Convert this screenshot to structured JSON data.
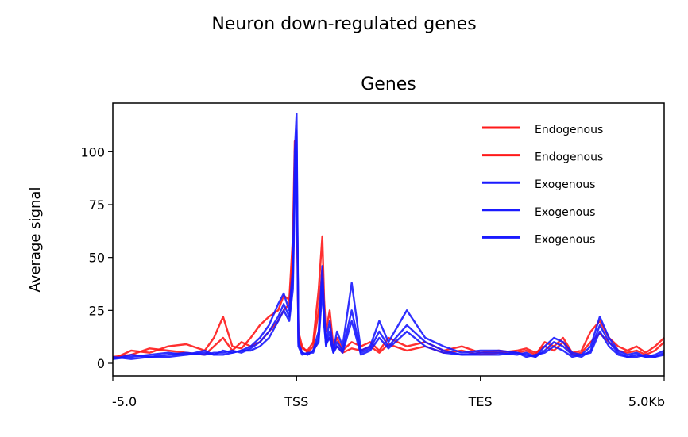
{
  "chart_data": {
    "type": "line",
    "suptitle": "Neuron down-regulated genes",
    "title": "Genes",
    "xlabel": "",
    "ylabel": "Average signal",
    "x_tick_labels": [
      "-5.0",
      "TSS",
      "TES",
      "5.0Kb"
    ],
    "x_tick_positions": [
      0,
      1,
      2,
      3
    ],
    "xlim": [
      0,
      3
    ],
    "y_ticks": [
      0,
      25,
      50,
      75,
      100
    ],
    "ylim": [
      -6,
      123
    ],
    "grid": false,
    "legend_position": "top-right",
    "series": [
      {
        "name": "Endogenous",
        "color": "#ff1a1a",
        "x": [
          0,
          0.1,
          0.2,
          0.3,
          0.4,
          0.5,
          0.55,
          0.6,
          0.65,
          0.7,
          0.75,
          0.8,
          0.85,
          0.9,
          0.93,
          0.96,
          0.98,
          0.99,
          1.0,
          1.01,
          1.03,
          1.06,
          1.09,
          1.12,
          1.14,
          1.15,
          1.16,
          1.18,
          1.2,
          1.22,
          1.25,
          1.3,
          1.35,
          1.4,
          1.45,
          1.5,
          1.6,
          1.7,
          1.8,
          1.9,
          2.0,
          2.1,
          2.2,
          2.25,
          2.3,
          2.35,
          2.4,
          2.45,
          2.5,
          2.55,
          2.6,
          2.65,
          2.7,
          2.75,
          2.8,
          2.85,
          2.9,
          2.95,
          3.0
        ],
        "values": [
          2,
          6,
          5,
          8,
          9,
          6,
          12,
          22,
          8,
          7,
          12,
          18,
          22,
          25,
          32,
          30,
          60,
          105,
          80,
          12,
          7,
          6,
          10,
          35,
          60,
          30,
          15,
          25,
          8,
          12,
          6,
          10,
          8,
          10,
          6,
          12,
          8,
          10,
          6,
          8,
          5,
          6,
          5,
          6,
          4,
          10,
          8,
          12,
          5,
          6,
          15,
          20,
          12,
          8,
          6,
          8,
          5,
          8,
          12
        ]
      },
      {
        "name": "Endogenous",
        "color": "#ff1a1a",
        "x": [
          0,
          0.1,
          0.2,
          0.3,
          0.4,
          0.5,
          0.55,
          0.6,
          0.65,
          0.7,
          0.75,
          0.8,
          0.85,
          0.9,
          0.93,
          0.96,
          0.98,
          0.99,
          1.0,
          1.01,
          1.03,
          1.06,
          1.09,
          1.12,
          1.14,
          1.15,
          1.16,
          1.18,
          1.2,
          1.22,
          1.25,
          1.3,
          1.35,
          1.4,
          1.45,
          1.5,
          1.6,
          1.7,
          1.8,
          1.9,
          2.0,
          2.1,
          2.2,
          2.25,
          2.3,
          2.35,
          2.4,
          2.45,
          2.5,
          2.55,
          2.6,
          2.65,
          2.7,
          2.75,
          2.8,
          2.85,
          2.9,
          2.95,
          3.0
        ],
        "values": [
          3,
          4,
          7,
          6,
          5,
          4,
          8,
          12,
          6,
          10,
          8,
          10,
          15,
          20,
          25,
          28,
          50,
          90,
          95,
          15,
          8,
          5,
          8,
          25,
          45,
          20,
          10,
          12,
          6,
          8,
          5,
          7,
          6,
          8,
          5,
          9,
          6,
          8,
          5,
          6,
          4,
          5,
          6,
          7,
          5,
          8,
          6,
          10,
          4,
          5,
          10,
          14,
          10,
          6,
          5,
          6,
          4,
          6,
          10
        ]
      },
      {
        "name": "Exogenous",
        "color": "#1a1aff",
        "x": [
          0,
          0.1,
          0.2,
          0.3,
          0.4,
          0.5,
          0.55,
          0.6,
          0.65,
          0.7,
          0.75,
          0.8,
          0.85,
          0.9,
          0.93,
          0.96,
          0.98,
          0.99,
          1.0,
          1.01,
          1.03,
          1.06,
          1.09,
          1.12,
          1.14,
          1.15,
          1.16,
          1.18,
          1.2,
          1.22,
          1.25,
          1.3,
          1.35,
          1.4,
          1.45,
          1.5,
          1.6,
          1.7,
          1.8,
          1.9,
          2.0,
          2.1,
          2.2,
          2.25,
          2.3,
          2.35,
          2.4,
          2.45,
          2.5,
          2.55,
          2.6,
          2.65,
          2.7,
          2.75,
          2.8,
          2.85,
          2.9,
          2.95,
          3.0
        ],
        "values": [
          2,
          3,
          4,
          5,
          4,
          5,
          4,
          6,
          5,
          6,
          8,
          12,
          18,
          28,
          33,
          25,
          45,
          100,
          118,
          10,
          5,
          4,
          6,
          15,
          46,
          25,
          10,
          20,
          6,
          15,
          8,
          38,
          6,
          8,
          20,
          10,
          25,
          12,
          8,
          5,
          6,
          6,
          5,
          4,
          3,
          8,
          12,
          10,
          5,
          4,
          8,
          22,
          12,
          6,
          4,
          5,
          3,
          4,
          6
        ]
      },
      {
        "name": "Exogenous",
        "color": "#1a1aff",
        "x": [
          0,
          0.1,
          0.2,
          0.3,
          0.4,
          0.5,
          0.55,
          0.6,
          0.65,
          0.7,
          0.75,
          0.8,
          0.85,
          0.9,
          0.93,
          0.96,
          0.98,
          0.99,
          1.0,
          1.01,
          1.03,
          1.06,
          1.09,
          1.12,
          1.14,
          1.15,
          1.16,
          1.18,
          1.2,
          1.22,
          1.25,
          1.3,
          1.35,
          1.4,
          1.45,
          1.5,
          1.6,
          1.7,
          1.8,
          1.9,
          2.0,
          2.1,
          2.2,
          2.25,
          2.3,
          2.35,
          2.4,
          2.45,
          2.5,
          2.55,
          2.6,
          2.65,
          2.7,
          2.75,
          2.8,
          2.85,
          2.9,
          2.95,
          3.0
        ],
        "values": [
          3,
          2,
          3,
          4,
          5,
          4,
          5,
          5,
          6,
          5,
          7,
          10,
          15,
          22,
          28,
          22,
          40,
          90,
          110,
          8,
          4,
          5,
          5,
          12,
          40,
          20,
          8,
          15,
          5,
          10,
          6,
          25,
          5,
          7,
          15,
          8,
          18,
          10,
          6,
          4,
          5,
          5,
          4,
          5,
          3,
          6,
          10,
          8,
          4,
          3,
          6,
          18,
          10,
          5,
          3,
          4,
          3,
          3,
          5
        ]
      },
      {
        "name": "Exogenous",
        "color": "#1a1aff",
        "x": [
          0,
          0.1,
          0.2,
          0.3,
          0.4,
          0.5,
          0.55,
          0.6,
          0.65,
          0.7,
          0.75,
          0.8,
          0.85,
          0.9,
          0.93,
          0.96,
          0.98,
          0.99,
          1.0,
          1.01,
          1.03,
          1.06,
          1.09,
          1.12,
          1.14,
          1.15,
          1.16,
          1.18,
          1.2,
          1.22,
          1.25,
          1.3,
          1.35,
          1.4,
          1.45,
          1.5,
          1.6,
          1.7,
          1.8,
          1.9,
          2.0,
          2.1,
          2.2,
          2.25,
          2.3,
          2.35,
          2.4,
          2.45,
          2.5,
          2.55,
          2.6,
          2.65,
          2.7,
          2.75,
          2.8,
          2.85,
          2.9,
          2.95,
          3.0
        ],
        "values": [
          2,
          4,
          3,
          3,
          4,
          6,
          4,
          4,
          5,
          6,
          6,
          8,
          12,
          20,
          25,
          20,
          35,
          80,
          100,
          9,
          5,
          4,
          6,
          10,
          35,
          18,
          9,
          12,
          5,
          8,
          5,
          20,
          4,
          6,
          12,
          7,
          15,
          8,
          5,
          4,
          4,
          4,
          5,
          3,
          4,
          5,
          8,
          6,
          3,
          4,
          5,
          15,
          8,
          4,
          3,
          3,
          4,
          3,
          4
        ]
      }
    ]
  }
}
